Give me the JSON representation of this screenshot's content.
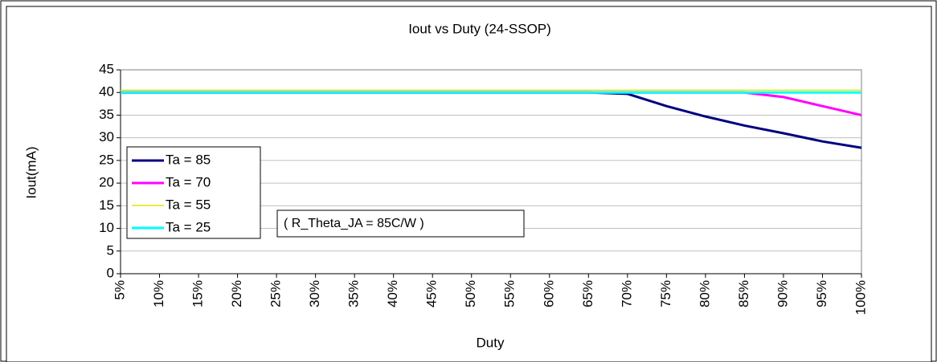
{
  "chart_data": {
    "type": "line",
    "title": "Iout vs Duty (24-SSOP)",
    "x_label": "Duty",
    "y_label": "Iout(mA)",
    "annotation": "( R_Theta_JA = 85C/W )",
    "categories": [
      "5%",
      "10%",
      "15%",
      "20%",
      "25%",
      "30%",
      "35%",
      "40%",
      "45%",
      "50%",
      "55%",
      "60%",
      "65%",
      "70%",
      "75%",
      "80%",
      "85%",
      "90%",
      "95%",
      "100%"
    ],
    "series": [
      {
        "name": "Ta = 85",
        "color": "#000080",
        "width": 3,
        "values": [
          40,
          40,
          40,
          40,
          40,
          40,
          40,
          40,
          40,
          40,
          40,
          40,
          40,
          39.7,
          37,
          34.7,
          32.7,
          31,
          29.2,
          27.8
        ]
      },
      {
        "name": "Ta = 70",
        "color": "#ff00ff",
        "width": 3,
        "values": [
          40,
          40,
          40,
          40,
          40,
          40,
          40,
          40,
          40,
          40,
          40,
          40,
          40,
          40,
          40,
          40,
          40,
          39,
          37,
          35
        ]
      },
      {
        "name": "Ta = 55",
        "color": "#e6e600",
        "width": 1.5,
        "values": [
          40.5,
          40.5,
          40.5,
          40.5,
          40.5,
          40.5,
          40.5,
          40.5,
          40.5,
          40.5,
          40.5,
          40.5,
          40.5,
          40.5,
          40.5,
          40.5,
          40.5,
          40.5,
          40.5,
          40.5
        ]
      },
      {
        "name": "Ta = 25",
        "color": "#00ffff",
        "width": 3,
        "values": [
          40,
          40,
          40,
          40,
          40,
          40,
          40,
          40,
          40,
          40,
          40,
          40,
          40,
          40,
          40,
          40,
          40,
          40,
          40,
          40
        ]
      }
    ],
    "ylim": [
      0,
      45
    ],
    "yticks": [
      0,
      5,
      10,
      15,
      20,
      25,
      30,
      35,
      40,
      45
    ],
    "grid": true
  }
}
